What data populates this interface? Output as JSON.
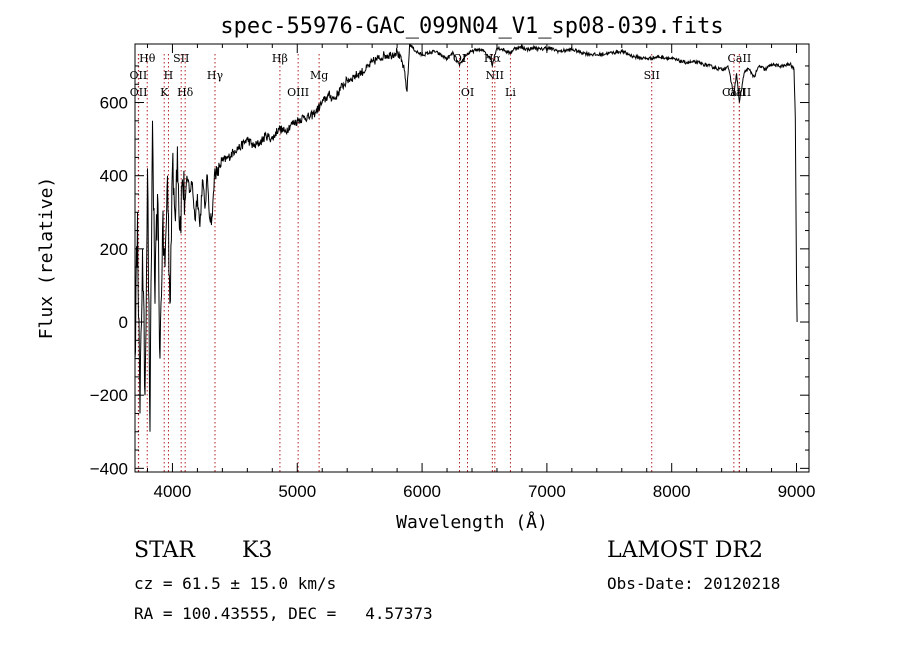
{
  "chart_data": {
    "type": "line",
    "title": "spec-55976-GAC_099N04_V1_sp08-039.fits",
    "xlabel": "Wavelength (Å)",
    "ylabel": "Flux (relative)",
    "xlim": [
      3700,
      9100
    ],
    "ylim": [
      -410,
      760
    ],
    "x_ticks": [
      4000,
      5000,
      6000,
      7000,
      8000,
      9000
    ],
    "y_ticks": [
      -400,
      -200,
      0,
      200,
      400,
      600
    ],
    "grid": false,
    "series": [
      {
        "x": [
          3700,
          3720,
          3740,
          3760,
          3780,
          3800,
          3820,
          3840,
          3860,
          3880,
          3900,
          3920,
          3940,
          3960,
          3980,
          4000,
          4020,
          4040,
          4060,
          4080,
          4100,
          4120,
          4140,
          4160,
          4180,
          4200,
          4220,
          4240,
          4260,
          4280,
          4300,
          4320,
          4340,
          4360,
          4380,
          4400,
          4450,
          4500,
          4550,
          4600,
          4650,
          4700,
          4750,
          4800,
          4850,
          4900,
          4950,
          5000,
          5050,
          5100,
          5150,
          5200,
          5250,
          5300,
          5350,
          5400,
          5450,
          5500,
          5550,
          5600,
          5650,
          5700,
          5750,
          5800,
          5850,
          5880,
          5900,
          5950,
          6000,
          6050,
          6100,
          6150,
          6200,
          6250,
          6300,
          6350,
          6400,
          6450,
          6500,
          6550,
          6563,
          6580,
          6600,
          6650,
          6700,
          6750,
          6800,
          6850,
          6900,
          6950,
          7000,
          7100,
          7200,
          7300,
          7400,
          7500,
          7600,
          7700,
          7800,
          7900,
          8000,
          8100,
          8200,
          8300,
          8400,
          8450,
          8498,
          8520,
          8542,
          8580,
          8600,
          8620,
          8662,
          8700,
          8750,
          8800,
          8850,
          8900,
          8950,
          8980,
          8990,
          9000,
          9005
        ],
        "y": [
          -100,
          300,
          -250,
          200,
          -200,
          420,
          -300,
          550,
          50,
          350,
          -100,
          250,
          150,
          400,
          50,
          420,
          300,
          480,
          250,
          390,
          330,
          390,
          360,
          380,
          280,
          350,
          260,
          390,
          310,
          400,
          280,
          290,
          420,
          400,
          430,
          440,
          450,
          470,
          480,
          500,
          480,
          490,
          510,
          500,
          530,
          520,
          540,
          550,
          560,
          560,
          575,
          600,
          620,
          610,
          640,
          660,
          670,
          680,
          690,
          710,
          720,
          730,
          730,
          740,
          700,
          630,
          760,
          740,
          730,
          735,
          740,
          730,
          720,
          735,
          700,
          730,
          740,
          745,
          740,
          720,
          700,
          730,
          750,
          745,
          735,
          750,
          750,
          745,
          750,
          745,
          750,
          740,
          745,
          735,
          730,
          735,
          740,
          725,
          720,
          725,
          720,
          710,
          710,
          700,
          690,
          700,
          620,
          680,
          600,
          680,
          690,
          690,
          670,
          700,
          690,
          705,
          700,
          700,
          705,
          690,
          560,
          120,
          0
        ]
      }
    ],
    "line_markers": [
      {
        "label": "Hθ",
        "x": 3798,
        "row": 0
      },
      {
        "label": "OII",
        "x": 3727,
        "row": 1
      },
      {
        "label": "H",
        "x": 3968,
        "row": 1
      },
      {
        "label": "SII",
        "x": 4070,
        "row": 0
      },
      {
        "label": "Hγ",
        "x": 4341,
        "row": 1
      },
      {
        "label": "OII",
        "x": 3729,
        "row": 2
      },
      {
        "label": "K",
        "x": 3934,
        "row": 2
      },
      {
        "label": "Hδ",
        "x": 4102,
        "row": 2
      },
      {
        "label": "Hβ",
        "x": 4861,
        "row": 0
      },
      {
        "label": "Mg",
        "x": 5175,
        "row": 1
      },
      {
        "label": "OIII",
        "x": 5007,
        "row": 2
      },
      {
        "label": "OI",
        "x": 6300,
        "row": 0
      },
      {
        "label": "OI",
        "x": 6364,
        "row": 2
      },
      {
        "label": "Hα",
        "x": 6563,
        "row": 0
      },
      {
        "label": "NII",
        "x": 6583,
        "row": 1
      },
      {
        "label": "Li",
        "x": 6708,
        "row": 2
      },
      {
        "label": "SII",
        "x": 7840,
        "row": 1
      },
      {
        "label": "CaII",
        "x": 8542,
        "row": 0
      },
      {
        "label": "CaII",
        "x": 8498,
        "row": 2
      },
      {
        "label": "CaII",
        "x": 8542,
        "row": 2
      }
    ]
  },
  "info": {
    "object_class": "STAR",
    "subclass": "K3",
    "survey": "LAMOST DR2",
    "cz": "cz = 61.5 ± 15.0 km/s",
    "obs_date": "Obs-Date: 20120218",
    "coords": "RA = 100.43555, DEC =   4.57373"
  }
}
